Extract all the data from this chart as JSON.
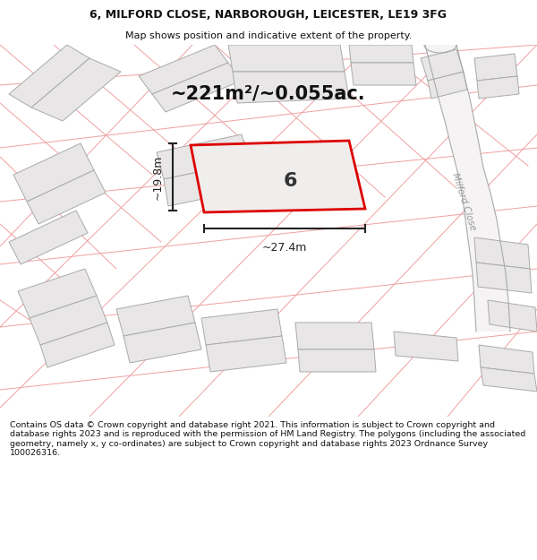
{
  "title_line1": "6, MILFORD CLOSE, NARBOROUGH, LEICESTER, LE19 3FG",
  "title_line2": "Map shows position and indicative extent of the property.",
  "area_text": "~221m²/~0.055ac.",
  "number_label": "6",
  "dim_width": "~27.4m",
  "dim_height": "~19.8m",
  "street_label": "Milford Close",
  "footer_text": "Contains OS data © Crown copyright and database right 2021. This information is subject to Crown copyright and database rights 2023 and is reproduced with the permission of HM Land Registry. The polygons (including the associated geometry, namely x, y co-ordinates) are subject to Crown copyright and database rights 2023 Ordnance Survey 100026316.",
  "bg_color": "#ffffff",
  "map_bg": "#f8f7f7",
  "building_fill": "#e8e6e6",
  "building_edge": "#aaaaaa",
  "plot_edge": "#dd0000",
  "plot_fill": "#f0eded",
  "cadastral_color": "#f0a0a0",
  "road_outline_color": "#aaaaaa",
  "dim_line_color": "#222222",
  "title_color": "#111111",
  "footer_color": "#111111",
  "street_label_color": "#999999"
}
